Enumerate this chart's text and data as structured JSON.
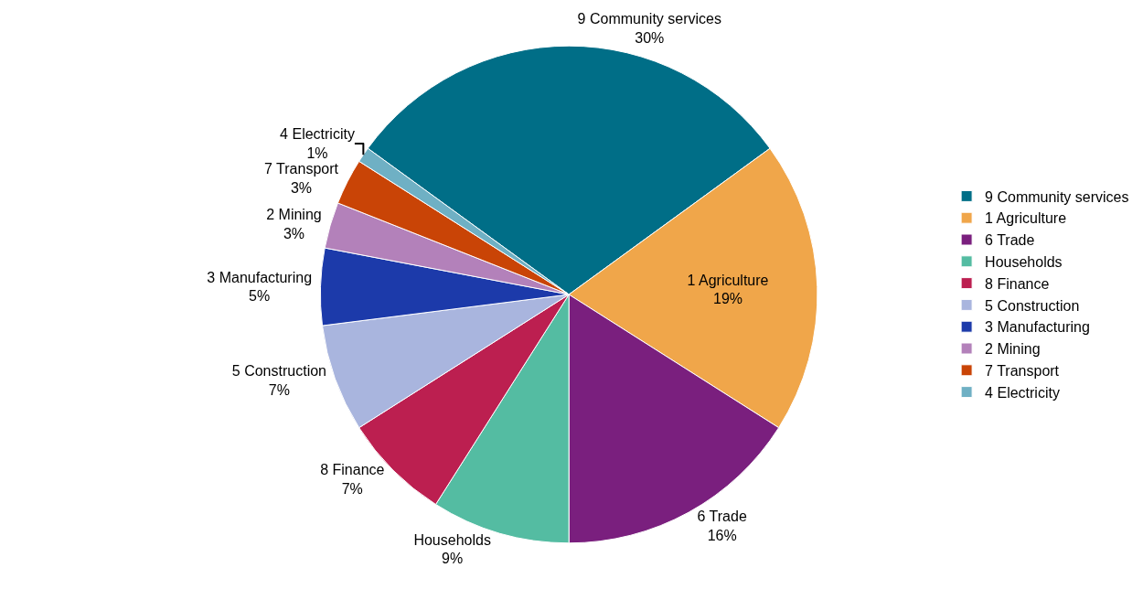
{
  "chart_data": {
    "type": "pie",
    "categories": [
      "9 Community services",
      "1 Agriculture",
      "6 Trade",
      "Households",
      "8 Finance",
      "5 Construction",
      "3 Manufacturing",
      "2 Mining",
      "7 Transport",
      "4 Electricity"
    ],
    "values": [
      30,
      19,
      16,
      9,
      7,
      7,
      5,
      3,
      3,
      1
    ],
    "value_labels": [
      "30%",
      "19%",
      "16%",
      "9%",
      "7%",
      "7%",
      "5%",
      "3%",
      "3%",
      "1%"
    ],
    "colors": [
      "#006e87",
      "#f0a64a",
      "#7a1f7e",
      "#54bca2",
      "#bc1f50",
      "#a9b5de",
      "#1c3aaa",
      "#b381ba",
      "#c94406",
      "#6fb0c4"
    ],
    "legend": "right"
  }
}
